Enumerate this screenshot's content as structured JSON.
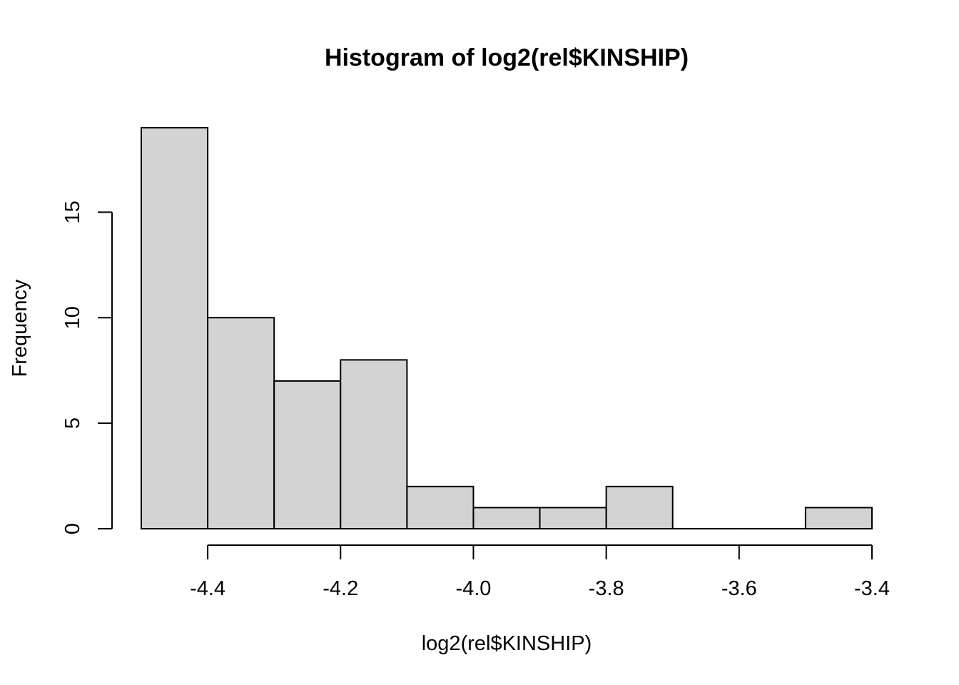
{
  "chart_data": {
    "type": "bar",
    "title": "Histogram of log2(rel$KINSHIP)",
    "xlabel": "log2(rel$KINSHIP)",
    "ylabel": "Frequency",
    "bin_edges": [
      -4.5,
      -4.4,
      -4.3,
      -4.2,
      -4.1,
      -4.0,
      -3.9,
      -3.8,
      -3.7,
      -3.6,
      -3.5,
      -3.4
    ],
    "values": [
      19,
      10,
      7,
      8,
      2,
      1,
      1,
      2,
      0,
      0,
      1
    ],
    "xlim": [
      -4.5,
      -3.4
    ],
    "ylim": [
      0,
      19
    ],
    "x_ticks": [
      -4.4,
      -4.2,
      -4.0,
      -3.8,
      -3.6,
      -3.4
    ],
    "x_tick_labels": [
      "-4.4",
      "-4.2",
      "-4.0",
      "-3.8",
      "-3.6",
      "-3.4"
    ],
    "y_ticks": [
      0,
      5,
      10,
      15
    ],
    "y_tick_labels": [
      "0",
      "5",
      "10",
      "15"
    ],
    "bar_color": "#d3d3d3",
    "grid": false,
    "legend": "none"
  }
}
